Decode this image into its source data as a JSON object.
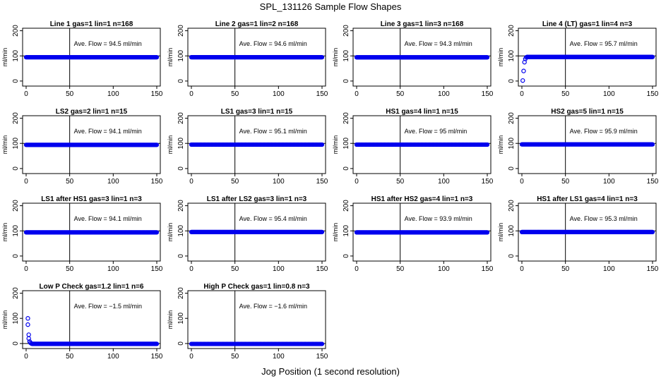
{
  "figure": {
    "title": "SPL_131126  Sample Flow Shapes",
    "xlabel": "Jog Position (1 second resolution)"
  },
  "chart_data": [
    {
      "type": "scatter",
      "title": "Line 1 gas=1 lin=1 n=168",
      "ylabel": "ml/min",
      "annotation": "Ave. Flow = 94.5  ml/min",
      "xlim": [
        0,
        150
      ],
      "ylim": [
        -20,
        210
      ],
      "xticks": [
        0,
        50,
        100,
        150
      ],
      "yticks": [
        0,
        100,
        200
      ],
      "vline": 50,
      "hline": 100,
      "x_range": [
        0,
        150
      ],
      "y_level": 94.5,
      "startup_points": []
    },
    {
      "type": "scatter",
      "title": "Line 2 gas=1 lin=2 n=168",
      "ylabel": "ml/min",
      "annotation": "Ave. Flow = 94.6  ml/min",
      "xlim": [
        0,
        150
      ],
      "ylim": [
        -20,
        210
      ],
      "xticks": [
        0,
        50,
        100,
        150
      ],
      "yticks": [
        0,
        100,
        200
      ],
      "vline": 50,
      "hline": 100,
      "x_range": [
        0,
        150
      ],
      "y_level": 94.6,
      "startup_points": []
    },
    {
      "type": "scatter",
      "title": "Line 3 gas=1 lin=3 n=168",
      "ylabel": "ml/min",
      "annotation": "Ave. Flow = 94.3  ml/min",
      "xlim": [
        0,
        150
      ],
      "ylim": [
        -20,
        210
      ],
      "xticks": [
        0,
        50,
        100,
        150
      ],
      "yticks": [
        0,
        100,
        200
      ],
      "vline": 50,
      "hline": 100,
      "x_range": [
        0,
        150
      ],
      "y_level": 94.3,
      "startup_points": []
    },
    {
      "type": "scatter",
      "title": "Line 4 (LT) gas=1 lin=4 n=3",
      "ylabel": "ml/min",
      "annotation": "Ave. Flow = 95.7  ml/min",
      "xlim": [
        0,
        150
      ],
      "ylim": [
        -20,
        210
      ],
      "xticks": [
        0,
        50,
        100,
        150
      ],
      "yticks": [
        0,
        100,
        200
      ],
      "vline": 50,
      "hline": 100,
      "x_range": [
        7,
        150
      ],
      "y_level": 95.7,
      "startup_points": [
        [
          1,
          2
        ],
        [
          2,
          40
        ],
        [
          3,
          75
        ],
        [
          4,
          88
        ],
        [
          5,
          94
        ],
        [
          6,
          96
        ]
      ]
    },
    {
      "type": "scatter",
      "title": "LS2 gas=2 lin=1 n=15",
      "ylabel": "ml/min",
      "annotation": "Ave. Flow = 94.1  ml/min",
      "xlim": [
        0,
        150
      ],
      "ylim": [
        -20,
        210
      ],
      "xticks": [
        0,
        50,
        100,
        150
      ],
      "yticks": [
        0,
        100,
        200
      ],
      "vline": 50,
      "hline": 100,
      "x_range": [
        0,
        150
      ],
      "y_level": 94.1,
      "startup_points": []
    },
    {
      "type": "scatter",
      "title": "LS1 gas=3 lin=1 n=15",
      "ylabel": "ml/min",
      "annotation": "Ave. Flow = 95.1  ml/min",
      "xlim": [
        0,
        150
      ],
      "ylim": [
        -20,
        210
      ],
      "xticks": [
        0,
        50,
        100,
        150
      ],
      "yticks": [
        0,
        100,
        200
      ],
      "vline": 50,
      "hline": 100,
      "x_range": [
        0,
        150
      ],
      "y_level": 95.1,
      "startup_points": []
    },
    {
      "type": "scatter",
      "title": "HS1 gas=4 lin=1 n=15",
      "ylabel": "ml/min",
      "annotation": "Ave. Flow = 95  ml/min",
      "xlim": [
        0,
        150
      ],
      "ylim": [
        -20,
        210
      ],
      "xticks": [
        0,
        50,
        100,
        150
      ],
      "yticks": [
        0,
        100,
        200
      ],
      "vline": 50,
      "hline": 100,
      "x_range": [
        0,
        150
      ],
      "y_level": 95,
      "startup_points": []
    },
    {
      "type": "scatter",
      "title": "HS2 gas=5 lin=1 n=15",
      "ylabel": "ml/min",
      "annotation": "Ave. Flow = 95.9  ml/min",
      "xlim": [
        0,
        150
      ],
      "ylim": [
        -20,
        210
      ],
      "xticks": [
        0,
        50,
        100,
        150
      ],
      "yticks": [
        0,
        100,
        200
      ],
      "vline": 50,
      "hline": 100,
      "x_range": [
        0,
        150
      ],
      "y_level": 95.9,
      "startup_points": []
    },
    {
      "type": "scatter",
      "title": "LS1 after HS1 gas=3 lin=1 n=3",
      "ylabel": "ml/min",
      "annotation": "Ave. Flow = 94.1  ml/min",
      "xlim": [
        0,
        150
      ],
      "ylim": [
        -20,
        210
      ],
      "xticks": [
        0,
        50,
        100,
        150
      ],
      "yticks": [
        0,
        100,
        200
      ],
      "vline": 50,
      "hline": 100,
      "x_range": [
        0,
        150
      ],
      "y_level": 94.1,
      "startup_points": []
    },
    {
      "type": "scatter",
      "title": "LS1 after LS2 gas=3 lin=1 n=3",
      "ylabel": "ml/min",
      "annotation": "Ave. Flow = 95.4  ml/min",
      "xlim": [
        0,
        150
      ],
      "ylim": [
        -20,
        210
      ],
      "xticks": [
        0,
        50,
        100,
        150
      ],
      "yticks": [
        0,
        100,
        200
      ],
      "vline": 50,
      "hline": 100,
      "x_range": [
        0,
        150
      ],
      "y_level": 95.4,
      "startup_points": []
    },
    {
      "type": "scatter",
      "title": "HS1 after HS2 gas=4 lin=1 n=3",
      "ylabel": "ml/min",
      "annotation": "Ave. Flow = 93.9  ml/min",
      "xlim": [
        0,
        150
      ],
      "ylim": [
        -20,
        210
      ],
      "xticks": [
        0,
        50,
        100,
        150
      ],
      "yticks": [
        0,
        100,
        200
      ],
      "vline": 50,
      "hline": 100,
      "x_range": [
        0,
        150
      ],
      "y_level": 93.9,
      "startup_points": []
    },
    {
      "type": "scatter",
      "title": "HS1 after LS1 gas=4 lin=1 n=3",
      "ylabel": "ml/min",
      "annotation": "Ave. Flow = 95.3  ml/min",
      "xlim": [
        0,
        150
      ],
      "ylim": [
        -20,
        210
      ],
      "xticks": [
        0,
        50,
        100,
        150
      ],
      "yticks": [
        0,
        100,
        200
      ],
      "vline": 50,
      "hline": 100,
      "x_range": [
        0,
        150
      ],
      "y_level": 95.3,
      "startup_points": []
    },
    {
      "type": "scatter",
      "title": "Low P Check gas=1.2 lin=1 n=6",
      "ylabel": "ml/min",
      "annotation": "Ave. Flow = −1.5  ml/min",
      "xlim": [
        0,
        150
      ],
      "ylim": [
        -20,
        210
      ],
      "xticks": [
        0,
        50,
        100,
        150
      ],
      "yticks": [
        0,
        100,
        200
      ],
      "vline": 50,
      "hline": 0,
      "x_range": [
        7,
        150
      ],
      "y_level": -1.5,
      "startup_points": [
        [
          2,
          100
        ],
        [
          2,
          75
        ],
        [
          3,
          35
        ],
        [
          3,
          20
        ],
        [
          4,
          8
        ],
        [
          5,
          3
        ],
        [
          6,
          0
        ]
      ]
    },
    {
      "type": "scatter",
      "title": "High P Check gas=1 lin=0.8 n=3",
      "ylabel": "ml/min",
      "annotation": "Ave. Flow = −1.6  ml/min",
      "xlim": [
        0,
        150
      ],
      "ylim": [
        -20,
        210
      ],
      "xticks": [
        0,
        50,
        100,
        150
      ],
      "yticks": [
        0,
        100,
        200
      ],
      "vline": 50,
      "hline": 0,
      "x_range": [
        0,
        150
      ],
      "y_level": -1.6,
      "startup_points": []
    }
  ]
}
